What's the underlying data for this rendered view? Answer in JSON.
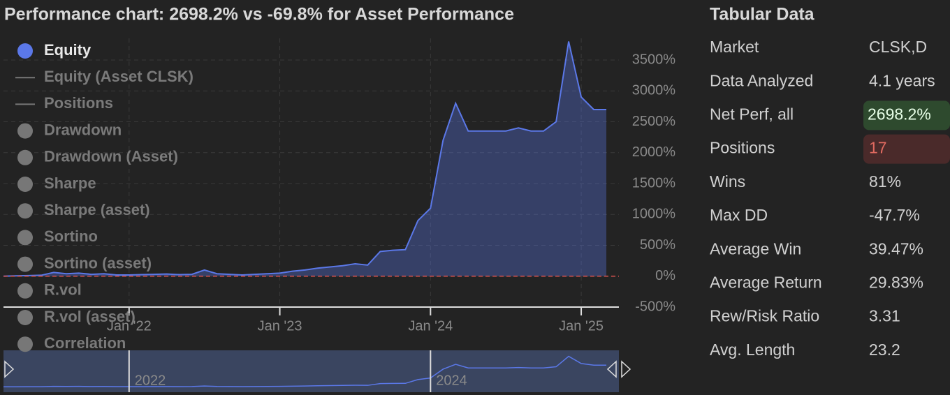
{
  "chart_data": {
    "type": "area",
    "title": "Performance chart: 2698.2% vs -69.8% for Asset Performance",
    "x": [
      "2021-03",
      "2021-04",
      "2021-05",
      "2021-06",
      "2021-07",
      "2021-08",
      "2021-09",
      "2021-10",
      "2021-11",
      "2021-12",
      "2022-01",
      "2022-02",
      "2022-03",
      "2022-04",
      "2022-05",
      "2022-06",
      "2022-07",
      "2022-08",
      "2022-09",
      "2022-10",
      "2022-11",
      "2022-12",
      "2023-01",
      "2023-02",
      "2023-03",
      "2023-04",
      "2023-05",
      "2023-06",
      "2023-07",
      "2023-08",
      "2023-09",
      "2023-10",
      "2023-11",
      "2023-12",
      "2024-01",
      "2024-02",
      "2024-03",
      "2024-04",
      "2024-05",
      "2024-06",
      "2024-07",
      "2024-08",
      "2024-09",
      "2024-10",
      "2024-11",
      "2024-12",
      "2025-01",
      "2025-02",
      "2025-03"
    ],
    "series": [
      {
        "name": "Equity",
        "color": "#5b78e8",
        "values": [
          0,
          5,
          10,
          15,
          60,
          40,
          50,
          30,
          40,
          20,
          20,
          25,
          30,
          35,
          25,
          30,
          100,
          40,
          30,
          20,
          30,
          40,
          50,
          80,
          100,
          130,
          150,
          170,
          200,
          180,
          400,
          420,
          430,
          900,
          1100,
          2200,
          2800,
          2350,
          2350,
          2350,
          2350,
          2400,
          2350,
          2350,
          2500,
          3800,
          2900,
          2698,
          2698
        ]
      }
    ],
    "other_legend_entries": [
      {
        "name": "Equity (Asset CLSK)",
        "marker": "line"
      },
      {
        "name": "Positions",
        "marker": "line"
      },
      {
        "name": "Drawdown",
        "marker": "dot"
      },
      {
        "name": "Drawdown (Asset)",
        "marker": "dot"
      },
      {
        "name": "Sharpe",
        "marker": "dot"
      },
      {
        "name": "Sharpe (asset)",
        "marker": "dot"
      },
      {
        "name": "Sortino",
        "marker": "dot"
      },
      {
        "name": "Sortino (asset)",
        "marker": "dot"
      },
      {
        "name": "R.vol",
        "marker": "dot"
      },
      {
        "name": "R.vol (asset)",
        "marker": "dot"
      },
      {
        "name": "Correlation",
        "marker": "dot"
      }
    ],
    "xlim": [
      "2021-03",
      "2025-04"
    ],
    "xticks": [
      {
        "value": "2022-01",
        "label": "Jan '22"
      },
      {
        "value": "2023-01",
        "label": "Jan '23"
      },
      {
        "value": "2024-01",
        "label": "Jan '24"
      },
      {
        "value": "2025-01",
        "label": "Jan '25"
      }
    ],
    "ylim": [
      -500,
      3850
    ],
    "yticks": [
      {
        "value": -500,
        "label": "-500%"
      },
      {
        "value": 0,
        "label": "0%"
      },
      {
        "value": 500,
        "label": "500%"
      },
      {
        "value": 1000,
        "label": "1000%"
      },
      {
        "value": 1500,
        "label": "1500%"
      },
      {
        "value": 2000,
        "label": "2000%"
      },
      {
        "value": 2500,
        "label": "2500%"
      },
      {
        "value": 3000,
        "label": "3000%"
      },
      {
        "value": 3500,
        "label": "3500%"
      }
    ],
    "grid": true,
    "navigator": {
      "ticks": [
        {
          "value": "2022-01",
          "label": "2022"
        },
        {
          "value": "2024-01",
          "label": "2024"
        }
      ]
    }
  },
  "table": {
    "title": "Tabular Data",
    "rows": [
      [
        "Market",
        "CLSK,D"
      ],
      [
        "Data Analyzed",
        "4.1 years"
      ],
      [
        "Net Perf, all",
        "2698.2%"
      ],
      [
        "Positions",
        "17"
      ],
      [
        "Wins",
        "81%"
      ],
      [
        "Max DD",
        "-47.7%"
      ],
      [
        "Average Win",
        "39.47%"
      ],
      [
        "Average Return",
        "29.83%"
      ],
      [
        "Rew/Risk Ratio",
        "3.31"
      ],
      [
        "Avg. Length",
        "23.2"
      ]
    ]
  }
}
